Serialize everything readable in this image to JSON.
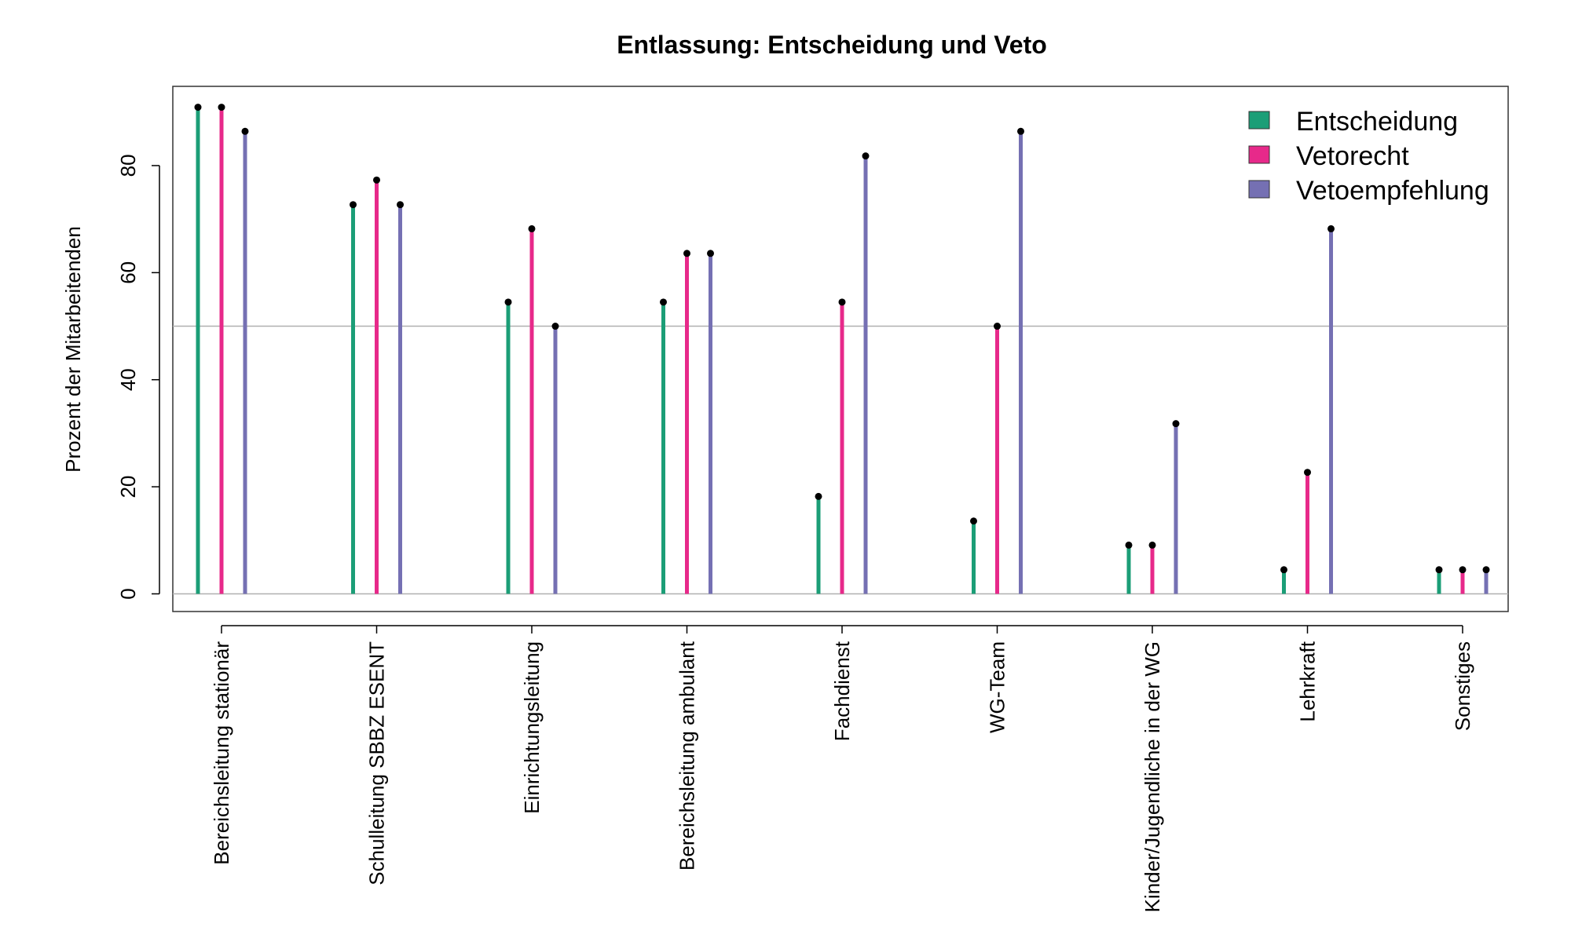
{
  "chart_data": {
    "type": "lollipop",
    "title": "Entlassung: Entscheidung und Veto",
    "xlabel": "",
    "ylabel": "Prozent der Mitarbeitenden",
    "ylim": [
      -3.3,
      94.8
    ],
    "yticks": [
      0,
      20,
      40,
      60,
      80
    ],
    "reference_line": 50,
    "grid": false,
    "legend_position": "top-right",
    "categories": [
      "Bereichsleitung stationär",
      "Schulleitung SBBZ ESENT",
      "Einrichtungsleitung",
      "Bereichsleitung ambulant",
      "Fachdienst",
      "WG-Team",
      "Kinder/Jugendliche in der WG",
      "Lehrkraft",
      "Sonstiges"
    ],
    "series": [
      {
        "name": "Entscheidung",
        "color": "#1b9e77",
        "values": [
          90.9,
          72.7,
          54.5,
          54.5,
          18.2,
          13.6,
          9.1,
          4.5,
          4.5
        ]
      },
      {
        "name": "Vetorecht",
        "color": "#e7298a",
        "values": [
          90.9,
          77.3,
          68.2,
          63.6,
          54.5,
          50.0,
          9.1,
          22.7,
          4.5
        ]
      },
      {
        "name": "Vetoempfehlung",
        "color": "#7570b3",
        "values": [
          86.4,
          72.7,
          50.0,
          63.6,
          81.8,
          86.4,
          31.8,
          68.2,
          4.5
        ]
      }
    ]
  }
}
